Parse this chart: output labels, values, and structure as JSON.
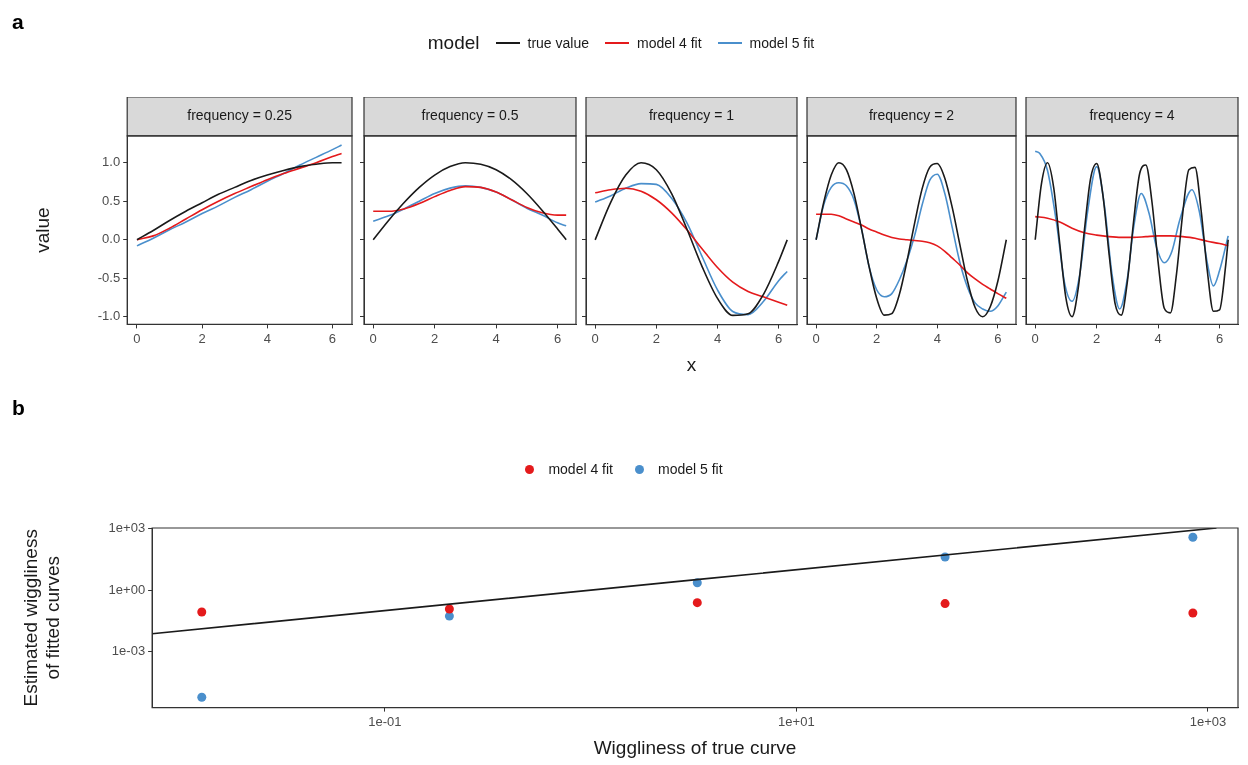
{
  "chart_data": [
    {
      "type": "line",
      "title": "frequency = 0.25",
      "ylabel": "value",
      "annotations": [
        "a"
      ],
      "legend": "top",
      "legend_title": "model",
      "xlim": [
        -0.3,
        6.6
      ],
      "ylim": [
        -1.1,
        1.35
      ],
      "xticks": [
        0,
        2,
        4,
        6
      ],
      "yticks": [
        {
          "value": -1,
          "label": "-1.0"
        },
        {
          "value": -0.5,
          "label": "-0.5"
        },
        {
          "value": 0,
          "label": "0.0"
        },
        {
          "value": 0.5,
          "label": "0.5"
        },
        {
          "value": 1,
          "label": "1.0"
        }
      ],
      "x": [
        0,
        0.5,
        1,
        1.5,
        2,
        2.5,
        3,
        3.5,
        4,
        4.5,
        5,
        5.5,
        6,
        6.28
      ],
      "series": [
        {
          "name": "true value",
          "color": "#1a1a1a",
          "values": [
            0,
            0.12,
            0.25,
            0.37,
            0.48,
            0.59,
            0.68,
            0.77,
            0.84,
            0.9,
            0.95,
            0.98,
            1.0,
            1.0
          ]
        },
        {
          "name": "model 4 fit",
          "color": "#e41a1c",
          "values": [
            0.0,
            0.05,
            0.15,
            0.27,
            0.39,
            0.5,
            0.6,
            0.69,
            0.78,
            0.86,
            0.93,
            1.0,
            1.08,
            1.12
          ]
        },
        {
          "name": "model 5 fit",
          "color": "#4a8fcc",
          "values": [
            -0.08,
            0.02,
            0.13,
            0.23,
            0.34,
            0.44,
            0.55,
            0.65,
            0.76,
            0.86,
            0.97,
            1.07,
            1.17,
            1.23
          ]
        }
      ]
    },
    {
      "type": "line",
      "title": "frequency = 0.5",
      "tick_labels": "x",
      "xlim": [
        -0.3,
        6.6
      ],
      "ylim": [
        -1.1,
        1.35
      ],
      "xticks": [
        0,
        2,
        4,
        6
      ],
      "yticks": [
        {
          "value": -1,
          "label": null
        },
        {
          "value": -0.5,
          "label": null
        },
        {
          "value": 0,
          "label": null
        },
        {
          "value": 0.5,
          "label": null
        },
        {
          "value": 1,
          "label": null
        }
      ],
      "x": [
        0,
        0.5,
        1,
        1.5,
        2,
        2.5,
        3,
        3.5,
        4,
        4.5,
        5,
        5.5,
        6,
        6.28
      ],
      "series": [
        {
          "color": "#1a1a1a",
          "values": [
            0,
            0.25,
            0.48,
            0.68,
            0.84,
            0.95,
            1.0,
            0.98,
            0.91,
            0.78,
            0.6,
            0.38,
            0.14,
            0.0
          ]
        },
        {
          "color": "#e41a1c",
          "values": [
            0.37,
            0.37,
            0.4,
            0.47,
            0.56,
            0.64,
            0.69,
            0.68,
            0.62,
            0.52,
            0.42,
            0.35,
            0.32,
            0.32
          ]
        },
        {
          "color": "#4a8fcc",
          "values": [
            0.24,
            0.31,
            0.4,
            0.5,
            0.6,
            0.67,
            0.7,
            0.68,
            0.62,
            0.52,
            0.41,
            0.32,
            0.22,
            0.18
          ]
        }
      ]
    },
    {
      "type": "line",
      "title": "frequency = 1",
      "xlabel": "x",
      "tick_labels": "x",
      "xlim": [
        -0.3,
        6.6
      ],
      "ylim": [
        -1.1,
        1.35
      ],
      "xticks": [
        0,
        2,
        4,
        6
      ],
      "yticks": [
        {
          "value": -1,
          "label": null
        },
        {
          "value": -0.5,
          "label": null
        },
        {
          "value": 0,
          "label": null
        },
        {
          "value": 0.5,
          "label": null
        },
        {
          "value": 1,
          "label": null
        }
      ],
      "x": [
        0,
        0.5,
        1,
        1.5,
        2,
        2.5,
        3,
        3.5,
        4,
        4.5,
        5,
        5.5,
        6,
        6.28
      ],
      "series": [
        {
          "color": "#1a1a1a",
          "values": [
            0,
            0.48,
            0.84,
            1.0,
            0.91,
            0.6,
            0.14,
            -0.35,
            -0.76,
            -0.98,
            -0.96,
            -0.71,
            -0.28,
            0
          ]
        },
        {
          "color": "#e41a1c",
          "values": [
            0.61,
            0.65,
            0.67,
            0.63,
            0.52,
            0.35,
            0.13,
            -0.12,
            -0.36,
            -0.55,
            -0.67,
            -0.74,
            -0.81,
            -0.85
          ]
        },
        {
          "color": "#4a8fcc",
          "values": [
            0.49,
            0.57,
            0.67,
            0.73,
            0.72,
            0.54,
            0.22,
            -0.22,
            -0.65,
            -0.93,
            -0.97,
            -0.8,
            -0.53,
            -0.41
          ]
        }
      ]
    },
    {
      "type": "line",
      "title": "frequency = 2",
      "tick_labels": "x",
      "xlim": [
        -0.3,
        6.6
      ],
      "ylim": [
        -1.1,
        1.35
      ],
      "xticks": [
        0,
        2,
        4,
        6
      ],
      "yticks": [
        {
          "value": -1,
          "label": null
        },
        {
          "value": -0.5,
          "label": null
        },
        {
          "value": 0,
          "label": null
        },
        {
          "value": 0.5,
          "label": null
        },
        {
          "value": 1,
          "label": null
        }
      ],
      "x": [
        0,
        0.25,
        0.5,
        0.75,
        1,
        1.25,
        1.5,
        1.75,
        2,
        2.25,
        2.5,
        2.75,
        3,
        3.25,
        3.5,
        3.75,
        4,
        4.25,
        4.5,
        4.75,
        5,
        5.25,
        5.5,
        5.75,
        6,
        6.28
      ],
      "series": [
        {
          "color": "#1a1a1a",
          "values": [
            0,
            0.48,
            0.84,
            1.0,
            0.91,
            0.6,
            0.14,
            -0.35,
            -0.76,
            -0.98,
            -0.96,
            -0.71,
            -0.28,
            0.21,
            0.66,
            0.94,
            0.99,
            0.8,
            0.41,
            -0.07,
            -0.54,
            -0.88,
            -1.0,
            -0.87,
            -0.54,
            0
          ]
        },
        {
          "color": "#e41a1c",
          "values": [
            0.33,
            0.33,
            0.33,
            0.31,
            0.27,
            0.23,
            0.19,
            0.14,
            0.1,
            0.06,
            0.03,
            0.01,
            0.0,
            -0.01,
            -0.02,
            -0.04,
            -0.08,
            -0.15,
            -0.24,
            -0.33,
            -0.43,
            -0.51,
            -0.58,
            -0.64,
            -0.7,
            -0.76
          ]
        },
        {
          "color": "#4a8fcc",
          "values": [
            0,
            0.45,
            0.68,
            0.74,
            0.7,
            0.52,
            0.14,
            -0.35,
            -0.65,
            -0.74,
            -0.7,
            -0.52,
            -0.27,
            0.05,
            0.45,
            0.77,
            0.85,
            0.6,
            0.15,
            -0.3,
            -0.62,
            -0.82,
            -0.9,
            -0.93,
            -0.86,
            -0.68
          ]
        }
      ]
    },
    {
      "type": "line",
      "title": "frequency = 4",
      "tick_labels": "x",
      "xlim": [
        -0.3,
        6.6
      ],
      "ylim": [
        -1.1,
        1.35
      ],
      "xticks": [
        0,
        2,
        4,
        6
      ],
      "yticks": [
        {
          "value": -1,
          "label": null
        },
        {
          "value": -0.5,
          "label": null
        },
        {
          "value": 0,
          "label": null
        },
        {
          "value": 0.5,
          "label": null
        },
        {
          "value": 1,
          "label": null
        }
      ],
      "series": [
        {
          "color": "#1a1a1a",
          "x": [
            0,
            0.2,
            0.4,
            0.6,
            0.8,
            1.0,
            1.2,
            1.4,
            1.6,
            1.8,
            2.0,
            2.2,
            2.4,
            2.6,
            2.8,
            3.0,
            3.2,
            3.4,
            3.6,
            3.8,
            4.0,
            4.2,
            4.4,
            4.6,
            4.8,
            5.0,
            5.2,
            5.4,
            5.6,
            5.8,
            6.0,
            6.2,
            6.28
          ],
          "values": [
            0,
            0.72,
            1.0,
            0.68,
            -0.06,
            -0.76,
            -1.0,
            -0.63,
            0.12,
            0.79,
            0.99,
            0.59,
            -0.17,
            -0.83,
            -0.98,
            -0.54,
            0.23,
            0.86,
            0.97,
            0.49,
            -0.29,
            -0.89,
            -0.95,
            -0.44,
            0.34,
            0.91,
            0.94,
            0.38,
            -0.4,
            -0.93,
            -0.91,
            -0.33,
            0
          ]
        },
        {
          "color": "#e41a1c",
          "x": [
            0,
            0.4,
            0.8,
            1.2,
            1.6,
            2.0,
            2.4,
            2.8,
            3.2,
            3.6,
            4.0,
            4.4,
            4.8,
            5.2,
            5.6,
            6.0,
            6.28
          ],
          "values": [
            0.3,
            0.28,
            0.23,
            0.15,
            0.09,
            0.06,
            0.04,
            0.03,
            0.03,
            0.04,
            0.05,
            0.05,
            0.04,
            0.02,
            -0.02,
            -0.05,
            -0.08
          ]
        },
        {
          "color": "#4a8fcc",
          "x": [
            0,
            0.15,
            0.4,
            0.7,
            0.95,
            1.2,
            1.45,
            1.7,
            2.0,
            2.25,
            2.5,
            2.75,
            3.0,
            3.2,
            3.45,
            3.7,
            3.95,
            4.2,
            4.45,
            4.7,
            5.1,
            5.35,
            5.6,
            5.8,
            6.0,
            6.28
          ],
          "values": [
            1.15,
            1.12,
            0.9,
            0.2,
            -0.55,
            -0.8,
            -0.45,
            0.35,
            0.95,
            0.45,
            -0.45,
            -0.9,
            -0.5,
            0.15,
            0.6,
            0.35,
            -0.1,
            -0.3,
            -0.15,
            0.25,
            0.65,
            0.35,
            -0.3,
            -0.6,
            -0.4,
            0.05
          ]
        }
      ]
    },
    {
      "type": "scatter",
      "xlabel": "Wiggliness of true curve",
      "ylabel": "Estimated wiggliness\nof fitted curves",
      "annotations": [
        "b"
      ],
      "legend": "top",
      "marker": "circle",
      "log": "xy",
      "xlim": [
        0.0074,
        1400
      ],
      "ylim": [
        1.8e-06,
        1100
      ],
      "xticks": [
        {
          "value": 0.1,
          "label": "1e-01"
        },
        {
          "value": 10,
          "label": "1e+01"
        },
        {
          "value": 1000,
          "label": "1e+03"
        }
      ],
      "yticks": [
        {
          "value": 0.001,
          "label": "1e-03"
        },
        {
          "value": 1,
          "label": "1e+00"
        },
        {
          "value": 1000,
          "label": "1e+03"
        }
      ],
      "x": [
        0.0129,
        0.206,
        3.3,
        52.8,
        845
      ],
      "series": [
        {
          "type": "line",
          "color": "#1a1a1a",
          "marker": "none",
          "x": [
            0.0074,
            1100
          ],
          "values": [
            0.0074,
            1100
          ]
        },
        {
          "name": "model 4 fit",
          "color": "#e41a1c",
          "values": [
            0.085,
            0.12,
            0.245,
            0.22,
            0.076
          ]
        },
        {
          "name": "model 5 fit",
          "color": "#4a8fcc",
          "values": [
            5.8e-06,
            0.054,
            2.3,
            42,
            390
          ]
        }
      ]
    }
  ]
}
